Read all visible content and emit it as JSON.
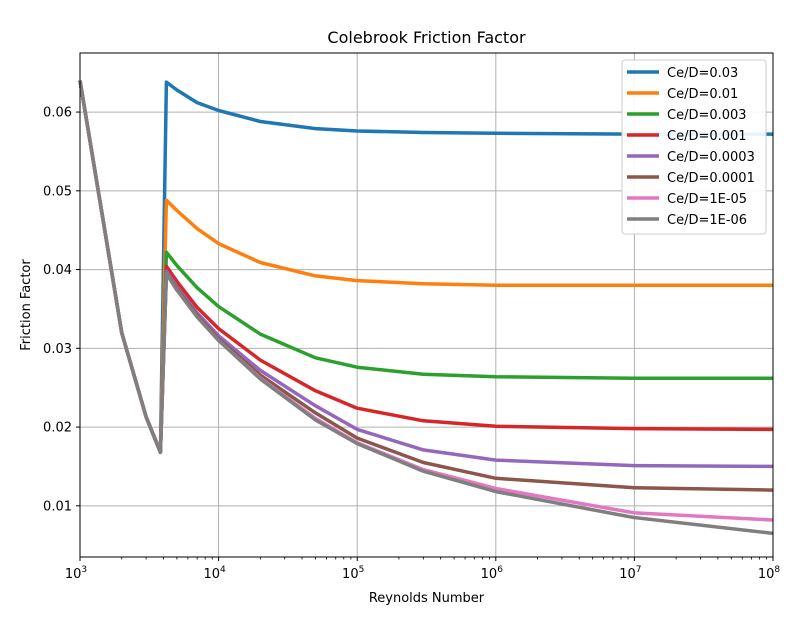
{
  "chart_data": {
    "type": "line",
    "title": "Colebrook Friction Factor",
    "xlabel": "Reynolds Number",
    "ylabel": "Friction Factor",
    "xscale": "log",
    "xlim": [
      1000,
      100000000
    ],
    "ylim": [
      0.0035,
      0.0675
    ],
    "x_ticks": [
      {
        "value": 1000,
        "base": "10",
        "exp": "3"
      },
      {
        "value": 10000,
        "base": "10",
        "exp": "4"
      },
      {
        "value": 100000,
        "base": "10",
        "exp": "5"
      },
      {
        "value": 1000000,
        "base": "10",
        "exp": "6"
      },
      {
        "value": 10000000,
        "base": "10",
        "exp": "7"
      },
      {
        "value": 100000000,
        "base": "10",
        "exp": "8"
      }
    ],
    "y_ticks": [
      {
        "value": 0.01,
        "label": "0.01"
      },
      {
        "value": 0.02,
        "label": "0.02"
      },
      {
        "value": 0.03,
        "label": "0.03"
      },
      {
        "value": 0.04,
        "label": "0.04"
      },
      {
        "value": 0.05,
        "label": "0.05"
      },
      {
        "value": 0.06,
        "label": "0.06"
      }
    ],
    "grid": true,
    "legend_position": "top-right",
    "series": [
      {
        "name": "Ce/D=0.03",
        "color": "#1f77b4",
        "x": [
          1000,
          2000,
          3000,
          3800,
          4200,
          5000,
          7000,
          10000,
          20000,
          50000,
          100000,
          300000,
          1000000,
          10000000,
          100000000
        ],
        "y": [
          0.064,
          0.032,
          0.0213,
          0.0168,
          0.0638,
          0.0628,
          0.0612,
          0.0602,
          0.0588,
          0.0579,
          0.0576,
          0.0574,
          0.0573,
          0.0572,
          0.0572
        ]
      },
      {
        "name": "Ce/D=0.01",
        "color": "#ff7f0e",
        "x": [
          1000,
          2000,
          3000,
          3800,
          4200,
          5000,
          7000,
          10000,
          20000,
          50000,
          100000,
          300000,
          1000000,
          10000000,
          100000000
        ],
        "y": [
          0.064,
          0.032,
          0.0213,
          0.0168,
          0.0488,
          0.0475,
          0.0452,
          0.0433,
          0.0409,
          0.0392,
          0.0386,
          0.0382,
          0.038,
          0.038,
          0.038
        ]
      },
      {
        "name": "Ce/D=0.003",
        "color": "#2ca02c",
        "x": [
          1000,
          2000,
          3000,
          3800,
          4200,
          5000,
          7000,
          10000,
          20000,
          50000,
          100000,
          300000,
          1000000,
          10000000,
          100000000
        ],
        "y": [
          0.064,
          0.032,
          0.0213,
          0.0168,
          0.0422,
          0.0405,
          0.0377,
          0.0353,
          0.0318,
          0.0288,
          0.0276,
          0.0267,
          0.0264,
          0.0262,
          0.0262
        ]
      },
      {
        "name": "Ce/D=0.001",
        "color": "#d62728",
        "x": [
          1000,
          2000,
          3000,
          3800,
          4200,
          5000,
          7000,
          10000,
          20000,
          50000,
          100000,
          300000,
          1000000,
          10000000,
          100000000
        ],
        "y": [
          0.064,
          0.032,
          0.0213,
          0.0168,
          0.0404,
          0.0385,
          0.0352,
          0.0325,
          0.0285,
          0.0246,
          0.0224,
          0.0208,
          0.0201,
          0.0198,
          0.0197
        ]
      },
      {
        "name": "Ce/D=0.0003",
        "color": "#9467bd",
        "x": [
          1000,
          2000,
          3000,
          3800,
          4200,
          5000,
          7000,
          10000,
          20000,
          50000,
          100000,
          300000,
          1000000,
          10000000,
          100000000
        ],
        "y": [
          0.064,
          0.032,
          0.0213,
          0.0168,
          0.0398,
          0.0378,
          0.0345,
          0.0316,
          0.0272,
          0.0227,
          0.0197,
          0.0171,
          0.0158,
          0.0151,
          0.015
        ]
      },
      {
        "name": "Ce/D=0.0001",
        "color": "#8c564b",
        "x": [
          1000,
          2000,
          3000,
          3800,
          4200,
          5000,
          7000,
          10000,
          20000,
          50000,
          100000,
          300000,
          1000000,
          10000000,
          100000000
        ],
        "y": [
          0.064,
          0.032,
          0.0213,
          0.0168,
          0.0396,
          0.0376,
          0.0342,
          0.0312,
          0.0266,
          0.0218,
          0.0186,
          0.0155,
          0.0135,
          0.0123,
          0.012
        ]
      },
      {
        "name": "Ce/D=1E-05",
        "color": "#e377c2",
        "x": [
          1000,
          2000,
          3000,
          3800,
          4200,
          5000,
          7000,
          10000,
          20000,
          50000,
          100000,
          300000,
          1000000,
          10000000,
          100000000
        ],
        "y": [
          0.064,
          0.032,
          0.0213,
          0.0168,
          0.0395,
          0.0374,
          0.034,
          0.031,
          0.0262,
          0.0211,
          0.018,
          0.0146,
          0.0122,
          0.0091,
          0.0082
        ]
      },
      {
        "name": "Ce/D=1E-06",
        "color": "#7f7f7f",
        "x": [
          1000,
          2000,
          3000,
          3800,
          4200,
          5000,
          7000,
          10000,
          20000,
          50000,
          100000,
          300000,
          1000000,
          10000000,
          100000000
        ],
        "y": [
          0.064,
          0.032,
          0.0213,
          0.0168,
          0.0395,
          0.0374,
          0.034,
          0.031,
          0.0261,
          0.0209,
          0.0179,
          0.0144,
          0.0118,
          0.0085,
          0.0065
        ]
      }
    ]
  }
}
